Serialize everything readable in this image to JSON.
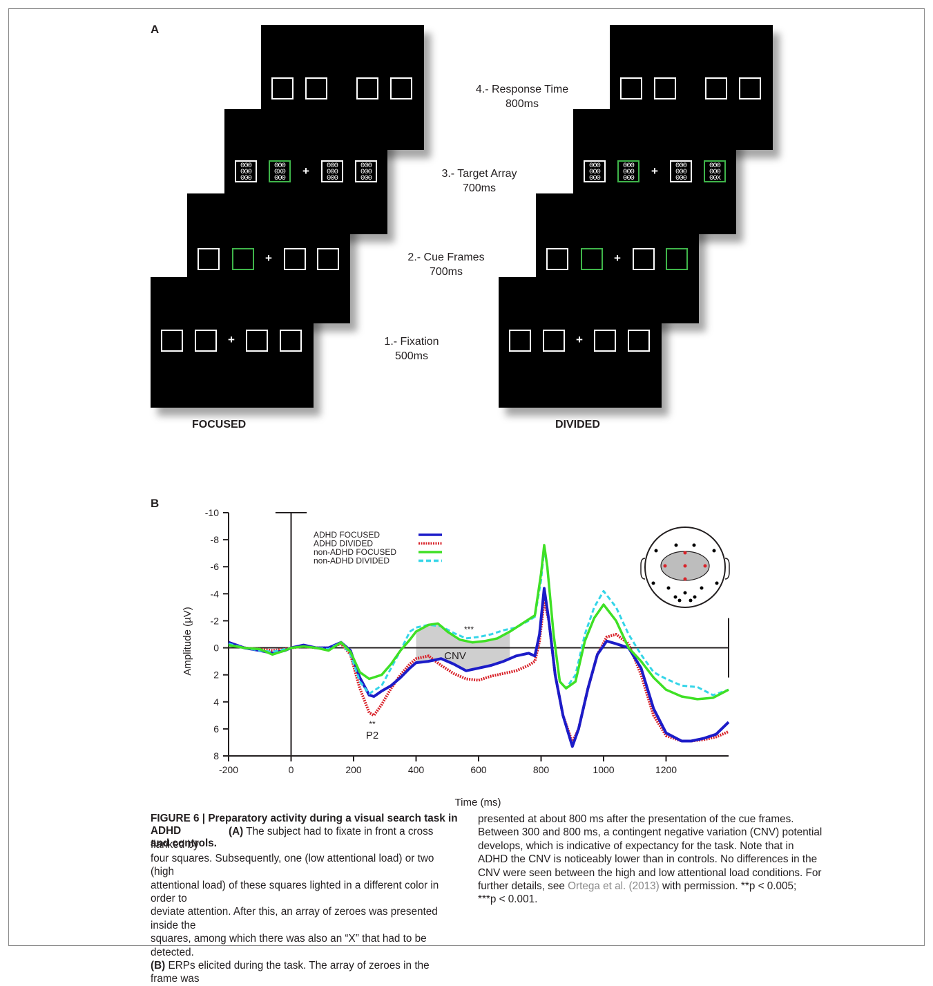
{
  "panel_a": {
    "letter": "A",
    "steps": [
      {
        "title": "4.- Response Time",
        "duration": "800ms"
      },
      {
        "title": "3.- Target Array",
        "duration": "700ms"
      },
      {
        "title": "2.- Cue Frames",
        "duration": "700ms"
      },
      {
        "title": "1.- Fixation",
        "duration": "500ms"
      }
    ],
    "conditions": {
      "left": "FOCUSED",
      "right": "DIVIDED"
    },
    "fixation_symbol": "+",
    "array_rows_plain": [
      "000",
      "000",
      "000"
    ],
    "array_rows_target_focused": [
      "000",
      "0X0",
      "000"
    ],
    "array_rows_target_divided": [
      "000",
      "000",
      "00X"
    ],
    "colors": {
      "cue": "#3fb54a",
      "screen": "#000000",
      "frame": "#ffffff"
    }
  },
  "panel_b": {
    "letter": "B",
    "annotations": {
      "cnv": "CNV",
      "p2": "P2",
      "p2_sig": "**",
      "cnv_sig": "***"
    },
    "scalp_map": {
      "icon": "head-electrode-map-icon"
    }
  },
  "chart_data": {
    "type": "line",
    "xlabel": "Time (ms)",
    "ylabel": "Amplitude (µV)",
    "xlim": [
      -200,
      1400
    ],
    "ylim": [
      -10,
      8
    ],
    "y_inverted": true,
    "xticks": [
      -200,
      0,
      200,
      400,
      600,
      800,
      1000,
      1200
    ],
    "yticks": [
      -10,
      -8,
      -6,
      -4,
      -2,
      0,
      2,
      4,
      6,
      8
    ],
    "legend_position": "top-left",
    "shaded_region": {
      "x": [
        400,
        700
      ],
      "label": "CNV"
    },
    "series": [
      {
        "name": "ADHD FOCUSED",
        "color": "#1c1cc8",
        "style": "solid",
        "points": [
          [
            -200,
            -0.4
          ],
          [
            -150,
            0
          ],
          [
            -100,
            0.2
          ],
          [
            -60,
            0.4
          ],
          [
            -20,
            0.2
          ],
          [
            0,
            0
          ],
          [
            40,
            -0.2
          ],
          [
            80,
            0
          ],
          [
            120,
            0
          ],
          [
            160,
            -0.4
          ],
          [
            190,
            0.2
          ],
          [
            220,
            2.2
          ],
          [
            250,
            3.5
          ],
          [
            265,
            3.6
          ],
          [
            290,
            3.2
          ],
          [
            320,
            2.8
          ],
          [
            350,
            2.2
          ],
          [
            380,
            1.5
          ],
          [
            400,
            1.1
          ],
          [
            440,
            1.0
          ],
          [
            480,
            0.8
          ],
          [
            520,
            1.2
          ],
          [
            560,
            1.7
          ],
          [
            600,
            1.5
          ],
          [
            640,
            1.3
          ],
          [
            680,
            1.0
          ],
          [
            720,
            0.6
          ],
          [
            760,
            0.4
          ],
          [
            780,
            0.6
          ],
          [
            795,
            -1
          ],
          [
            810,
            -4.4
          ],
          [
            825,
            -2
          ],
          [
            845,
            2
          ],
          [
            870,
            5
          ],
          [
            900,
            7.3
          ],
          [
            920,
            6
          ],
          [
            950,
            3
          ],
          [
            980,
            0.5
          ],
          [
            1010,
            -0.5
          ],
          [
            1040,
            -0.3
          ],
          [
            1080,
            0
          ],
          [
            1120,
            1.5
          ],
          [
            1160,
            4.5
          ],
          [
            1200,
            6.3
          ],
          [
            1250,
            6.9
          ],
          [
            1280,
            6.9
          ],
          [
            1320,
            6.7
          ],
          [
            1360,
            6.4
          ],
          [
            1400,
            5.5
          ]
        ]
      },
      {
        "name": "ADHD DIVIDED",
        "color": "#d8232a",
        "style": "dotted",
        "points": [
          [
            -200,
            -0.4
          ],
          [
            -150,
            0
          ],
          [
            -100,
            0.1
          ],
          [
            -60,
            0.2
          ],
          [
            -20,
            0.1
          ],
          [
            0,
            0
          ],
          [
            40,
            -0.1
          ],
          [
            80,
            0
          ],
          [
            120,
            0
          ],
          [
            160,
            -0.3
          ],
          [
            190,
            0.5
          ],
          [
            220,
            3
          ],
          [
            250,
            4.8
          ],
          [
            265,
            5.0
          ],
          [
            290,
            4.2
          ],
          [
            320,
            3.0
          ],
          [
            350,
            2.0
          ],
          [
            380,
            1.2
          ],
          [
            400,
            0.8
          ],
          [
            440,
            0.6
          ],
          [
            480,
            1.3
          ],
          [
            520,
            1.9
          ],
          [
            560,
            2.3
          ],
          [
            600,
            2.4
          ],
          [
            640,
            2.1
          ],
          [
            680,
            1.9
          ],
          [
            720,
            1.7
          ],
          [
            760,
            1.3
          ],
          [
            780,
            1.0
          ],
          [
            795,
            -0.5
          ],
          [
            810,
            -3.5
          ],
          [
            825,
            -2
          ],
          [
            845,
            2
          ],
          [
            870,
            5
          ],
          [
            900,
            7
          ],
          [
            920,
            6
          ],
          [
            950,
            3
          ],
          [
            980,
            0.5
          ],
          [
            1010,
            -0.8
          ],
          [
            1040,
            -1
          ],
          [
            1080,
            -0.3
          ],
          [
            1120,
            2
          ],
          [
            1160,
            5
          ],
          [
            1200,
            6.5
          ],
          [
            1250,
            6.9
          ],
          [
            1280,
            6.9
          ],
          [
            1320,
            6.8
          ],
          [
            1360,
            6.6
          ],
          [
            1400,
            6.2
          ]
        ]
      },
      {
        "name": "non-ADHD FOCUSED",
        "color": "#3fe025",
        "style": "solid",
        "points": [
          [
            -200,
            -0.2
          ],
          [
            -150,
            0
          ],
          [
            -100,
            0.1
          ],
          [
            -60,
            0.5
          ],
          [
            -20,
            0.2
          ],
          [
            0,
            0
          ],
          [
            40,
            -0.1
          ],
          [
            80,
            0
          ],
          [
            120,
            0.2
          ],
          [
            160,
            -0.4
          ],
          [
            190,
            0.3
          ],
          [
            220,
            1.8
          ],
          [
            250,
            2.3
          ],
          [
            290,
            2
          ],
          [
            320,
            1.2
          ],
          [
            350,
            0.2
          ],
          [
            380,
            -0.6
          ],
          [
            400,
            -1.2
          ],
          [
            440,
            -1.7
          ],
          [
            470,
            -1.8
          ],
          [
            500,
            -1.2
          ],
          [
            540,
            -0.6
          ],
          [
            580,
            -0.4
          ],
          [
            620,
            -0.5
          ],
          [
            660,
            -0.7
          ],
          [
            700,
            -1.2
          ],
          [
            740,
            -1.8
          ],
          [
            780,
            -2.4
          ],
          [
            800,
            -5.5
          ],
          [
            810,
            -7.6
          ],
          [
            820,
            -6
          ],
          [
            840,
            -1
          ],
          [
            860,
            2.5
          ],
          [
            880,
            3
          ],
          [
            910,
            2.5
          ],
          [
            940,
            -0.5
          ],
          [
            970,
            -2.2
          ],
          [
            1000,
            -3.2
          ],
          [
            1040,
            -2
          ],
          [
            1080,
            0
          ],
          [
            1120,
            1
          ],
          [
            1160,
            2.2
          ],
          [
            1200,
            3.1
          ],
          [
            1250,
            3.6
          ],
          [
            1300,
            3.8
          ],
          [
            1350,
            3.7
          ],
          [
            1400,
            3.1
          ]
        ]
      },
      {
        "name": "non-ADHD DIVIDED",
        "color": "#35d5e8",
        "style": "dashed",
        "points": [
          [
            -200,
            -0.3
          ],
          [
            -150,
            0
          ],
          [
            -100,
            0.2
          ],
          [
            -60,
            0.3
          ],
          [
            -20,
            0.1
          ],
          [
            0,
            0
          ],
          [
            40,
            -0.1
          ],
          [
            80,
            0
          ],
          [
            120,
            0.1
          ],
          [
            160,
            -0.4
          ],
          [
            190,
            0.5
          ],
          [
            220,
            2.5
          ],
          [
            250,
            3.4
          ],
          [
            290,
            2.8
          ],
          [
            320,
            1.5
          ],
          [
            350,
            0.2
          ],
          [
            380,
            -1.2
          ],
          [
            400,
            -1.5
          ],
          [
            440,
            -1.7
          ],
          [
            480,
            -1.6
          ],
          [
            520,
            -1.1
          ],
          [
            560,
            -0.7
          ],
          [
            600,
            -0.8
          ],
          [
            640,
            -1.0
          ],
          [
            680,
            -1.3
          ],
          [
            720,
            -1.5
          ],
          [
            760,
            -2.0
          ],
          [
            780,
            -2.3
          ],
          [
            800,
            -5
          ],
          [
            810,
            -7.3
          ],
          [
            820,
            -6
          ],
          [
            840,
            -1
          ],
          [
            860,
            2.5
          ],
          [
            880,
            3
          ],
          [
            910,
            2
          ],
          [
            940,
            -1
          ],
          [
            970,
            -3
          ],
          [
            1000,
            -4.2
          ],
          [
            1040,
            -3
          ],
          [
            1080,
            -1
          ],
          [
            1120,
            0.5
          ],
          [
            1160,
            1.8
          ],
          [
            1200,
            2.3
          ],
          [
            1250,
            2.8
          ],
          [
            1300,
            2.9
          ],
          [
            1350,
            3.5
          ],
          [
            1400,
            3.1
          ]
        ]
      }
    ]
  },
  "caption": {
    "figure_label": "FIGURE 6 | Preparatory activity during a visual search task in ADHD and controls.",
    "col1_lines": [
      "four squares. Subsequently, one (low attentional load) or two (high",
      "attentional load) of these squares lighted in a different color in order to",
      "deviate attention. After this, an array of zeroes was presented inside the",
      "squares, among which there was also an “X” that had to be detected."
    ],
    "col1_line2_pre": "and controls.",
    "col1_line2_a": "(A)",
    "col1_line2_text": " The subject had to fixate in front a cross flanked by",
    "col1_last_b": "(B)",
    "col1_last_text": " ERPs elicited during the task. The array of zeroes in the frame was",
    "col2_lines": [
      "presented at about 800 ms after the presentation of the cue frames.",
      "Between 300 and 800 ms, a contingent negative variation (CNV) potential",
      "develops, which is indicative of expectancy for the task. Note that in",
      "ADHD the CNV is noticeably lower than in controls. No differences in the",
      "CNV were seen between the high and low attentional load conditions. For"
    ],
    "col2_further": "further details, see ",
    "col2_ref": "Ortega et al. (2013)",
    "col2_after_ref": " with permission. **p < 0.005;",
    "col2_last": "***p < 0.001."
  }
}
